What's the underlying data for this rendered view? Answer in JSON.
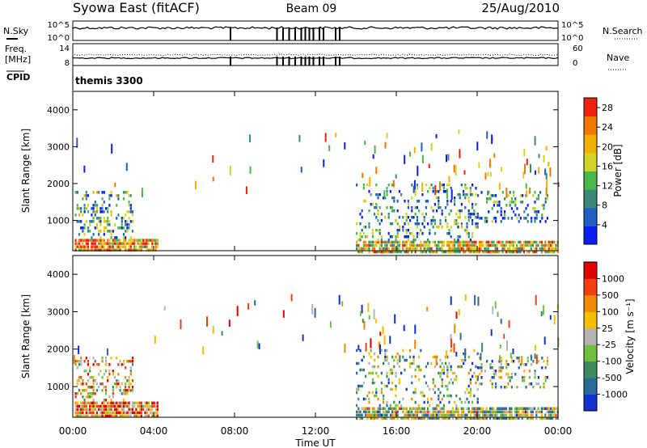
{
  "header": {
    "station": "Syowa East (fitACF)",
    "beam": "Beam 09",
    "date": "25/Aug/2010"
  },
  "noise_panel": {
    "left_label": "N.Sky",
    "right_label": "N.Search",
    "top_tick": "10^5",
    "bottom_tick": "10^0"
  },
  "freq_panel": {
    "left_label_line1": "Freq.",
    "left_label_line2": "[MHz]",
    "right_label": "Nave",
    "left_ticks": [
      "14",
      "8"
    ],
    "right_ticks": [
      "60",
      "0"
    ]
  },
  "cpid": {
    "label": "CPID",
    "value": "themis 3300"
  },
  "x_axis": {
    "label": "Time UT",
    "ticks": [
      "00:00",
      "04:00",
      "08:00",
      "12:00",
      "16:00",
      "20:00",
      "00:00"
    ],
    "range_hours": [
      0,
      24
    ]
  },
  "chart_data": [
    {
      "type": "heatmap",
      "title": "",
      "quantity": "Power",
      "xlabel": "Time UT",
      "ylabel": "Slant Range [km]",
      "xlim_hours": [
        0,
        24
      ],
      "ylim_km": [
        180,
        4500
      ],
      "y_ticks": [
        "1000",
        "2000",
        "3000",
        "4000"
      ],
      "colorbar": {
        "label": "Power [dB]",
        "ticks": [
          "4",
          "8",
          "12",
          "16",
          "20",
          "24",
          "28"
        ],
        "range": [
          0,
          30
        ],
        "colors": [
          "#0a20ee",
          "#2060c0",
          "#3a8a7a",
          "#48b848",
          "#d2d22a",
          "#f0b000",
          "#f07800",
          "#f02010"
        ]
      },
      "echo_regions": [
        {
          "t_start": 0.1,
          "t_end": 4.2,
          "r_min": 180,
          "r_max": 500,
          "density": 0.9,
          "level_mean": 0.75
        },
        {
          "t_start": 0.1,
          "t_end": 3.0,
          "r_min": 500,
          "r_max": 1800,
          "density": 0.35,
          "level_mean": 0.35
        },
        {
          "t_start": 14.0,
          "t_end": 24.0,
          "r_min": 180,
          "r_max": 450,
          "density": 0.8,
          "level_mean": 0.6
        },
        {
          "t_start": 14.0,
          "t_end": 20.0,
          "r_min": 450,
          "r_max": 2000,
          "density": 0.25,
          "level_mean": 0.3
        },
        {
          "t_start": 20.0,
          "t_end": 23.5,
          "r_min": 1000,
          "r_max": 1800,
          "density": 0.25,
          "level_mean": 0.25
        }
      ]
    },
    {
      "type": "heatmap",
      "title": "",
      "quantity": "Velocity",
      "xlabel": "Time UT",
      "ylabel": "Slant Range [km]",
      "xlim_hours": [
        0,
        24
      ],
      "ylim_km": [
        180,
        4500
      ],
      "y_ticks": [
        "1000",
        "2000",
        "3000",
        "4000"
      ],
      "colorbar": {
        "label": "Velocity [m s⁻¹]",
        "ticks": [
          "1000",
          "500",
          "100",
          "25",
          "-25",
          "-100",
          "-500",
          "-1000"
        ],
        "colors": [
          "#1030d0",
          "#2c6a9a",
          "#3c8a60",
          "#70c040",
          "#b4b4b4",
          "#f0c000",
          "#f08a00",
          "#f04010",
          "#e00000"
        ]
      },
      "echo_regions": [
        {
          "t_start": 0.1,
          "t_end": 4.2,
          "r_min": 180,
          "r_max": 600,
          "density": 0.9,
          "level_mean": 0.75
        },
        {
          "t_start": 0.1,
          "t_end": 3.0,
          "r_min": 600,
          "r_max": 1800,
          "density": 0.35,
          "level_mean": 0.6
        },
        {
          "t_start": 14.0,
          "t_end": 24.0,
          "r_min": 180,
          "r_max": 450,
          "density": 0.8,
          "level_mean": 0.45
        },
        {
          "t_start": 14.0,
          "t_end": 20.0,
          "r_min": 450,
          "r_max": 2000,
          "density": 0.25,
          "level_mean": 0.4
        },
        {
          "t_start": 20.0,
          "t_end": 23.5,
          "r_min": 1000,
          "r_max": 1800,
          "density": 0.25,
          "level_mean": 0.4
        }
      ]
    }
  ]
}
